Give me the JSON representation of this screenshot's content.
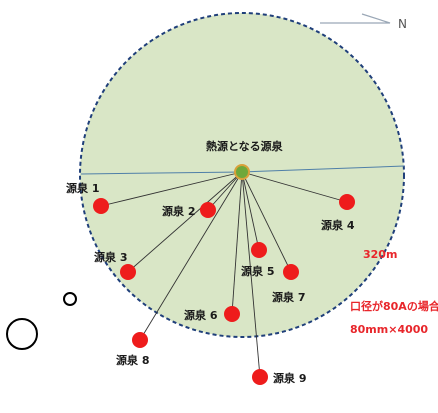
{
  "north_label": "N",
  "center": {
    "label": "熱源となる源泉"
  },
  "radius_label": "320m",
  "note": {
    "line1": "口径が80Aの場合",
    "line2": "80mm×4000"
  },
  "sources": [
    {
      "id": "s1",
      "label": "源泉 1"
    },
    {
      "id": "s2",
      "label": "源泉 2"
    },
    {
      "id": "s3",
      "label": "源泉 3"
    },
    {
      "id": "s4",
      "label": "源泉 4"
    },
    {
      "id": "s5",
      "label": "源泉 5"
    },
    {
      "id": "s6",
      "label": "源泉 6"
    },
    {
      "id": "s7",
      "label": "源泉 7"
    },
    {
      "id": "s8",
      "label": "源泉 8"
    },
    {
      "id": "s9",
      "label": "源泉 9"
    }
  ],
  "colors": {
    "area_fill": "#d9e6c6",
    "area_border": "#1f3f7a",
    "source_fill": "#ee1c1c",
    "center_fill": "#6ea83a",
    "connector": "#333333",
    "note_text": "#e8262b"
  }
}
